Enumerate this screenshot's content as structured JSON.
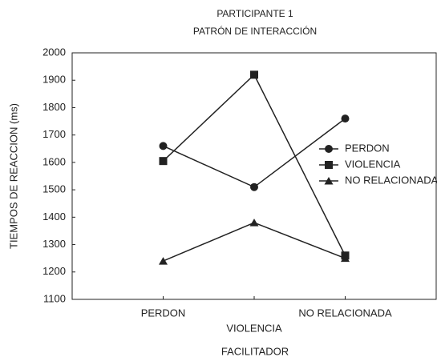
{
  "chart_data": {
    "type": "line",
    "title": "PARTICIPANTE 1",
    "subtitle": "PATRÓN DE INTERACCIÓN",
    "x_label": "FACILITADOR",
    "y_label": "TIEMPOS DE REACCION (ms)",
    "categories": [
      "PERDON",
      "VIOLENCIA",
      "NO RELACIONADA"
    ],
    "series": [
      {
        "name": "PERDON",
        "color": "#222222",
        "marker": "circle",
        "values": [
          1660,
          1510,
          1760
        ]
      },
      {
        "name": "VIOLENCIA",
        "color": "#222222",
        "marker": "square",
        "values": [
          1605,
          1920,
          1260
        ]
      },
      {
        "name": "NO RELACIONADA",
        "color": "#222222",
        "marker": "triangle",
        "values": [
          1240,
          1380,
          1250
        ]
      }
    ],
    "ylim": [
      1100,
      2000
    ],
    "yticks": [
      1100,
      1200,
      1300,
      1400,
      1500,
      1600,
      1700,
      1800,
      1900,
      2000
    ],
    "grid": false,
    "legend": "right"
  }
}
